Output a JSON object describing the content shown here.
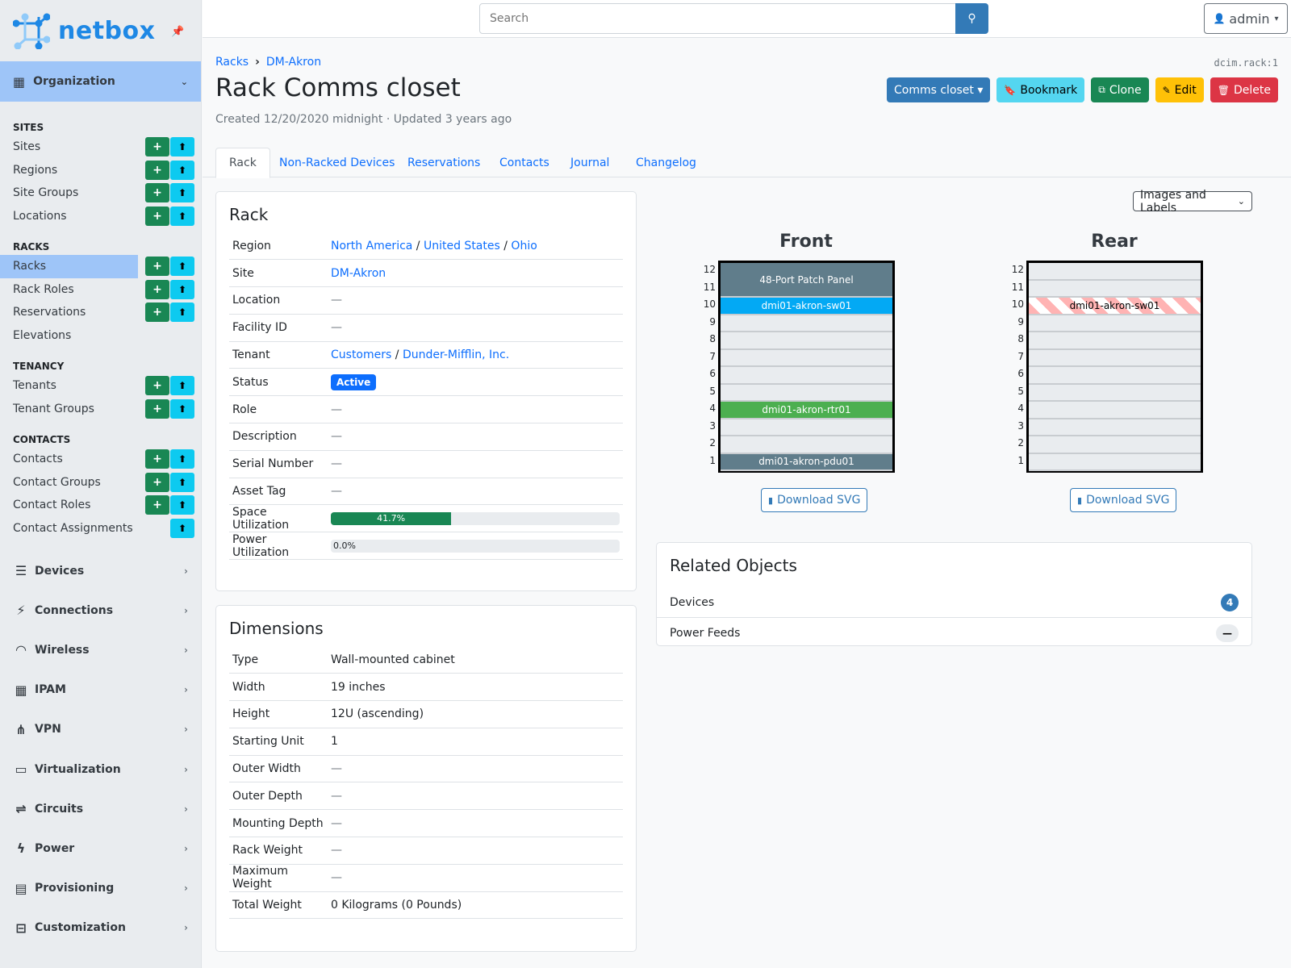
{
  "brand": "netbox",
  "colors": {
    "accent": "#0d6efd",
    "sidebar_active": "#9ec5f8",
    "front_patch": "#607d8b",
    "front_switch": "#03a9f4",
    "front_router": "#4caf50",
    "front_pdu": "#607d8b",
    "rear_hatch": "#ffb3b3"
  },
  "sidebar": {
    "top_group": {
      "label": "Organization",
      "icon": "building-icon"
    },
    "sections": [
      {
        "title": "SITES",
        "items": [
          {
            "label": "Sites",
            "add": true,
            "import": true
          },
          {
            "label": "Regions",
            "add": true,
            "import": true
          },
          {
            "label": "Site Groups",
            "add": true,
            "import": true
          },
          {
            "label": "Locations",
            "add": true,
            "import": true
          }
        ]
      },
      {
        "title": "RACKS",
        "items": [
          {
            "label": "Racks",
            "add": true,
            "import": true,
            "active": true
          },
          {
            "label": "Rack Roles",
            "add": true,
            "import": true
          },
          {
            "label": "Reservations",
            "add": true,
            "import": true
          },
          {
            "label": "Elevations",
            "add": false,
            "import": false
          }
        ]
      },
      {
        "title": "TENANCY",
        "items": [
          {
            "label": "Tenants",
            "add": true,
            "import": true
          },
          {
            "label": "Tenant Groups",
            "add": true,
            "import": true
          }
        ]
      },
      {
        "title": "CONTACTS",
        "items": [
          {
            "label": "Contacts",
            "add": true,
            "import": true
          },
          {
            "label": "Contact Groups",
            "add": true,
            "import": true
          },
          {
            "label": "Contact Roles",
            "add": true,
            "import": true
          },
          {
            "label": "Contact Assignments",
            "add": false,
            "import": true
          }
        ]
      }
    ],
    "groups": [
      {
        "label": "Devices",
        "icon": "server-icon",
        "glyph": "☰"
      },
      {
        "label": "Connections",
        "icon": "plug-icon",
        "glyph": "⚡"
      },
      {
        "label": "Wireless",
        "icon": "wifi-icon",
        "glyph": "◠"
      },
      {
        "label": "IPAM",
        "icon": "ip-icon",
        "glyph": "▦"
      },
      {
        "label": "VPN",
        "icon": "network-icon",
        "glyph": "⋔"
      },
      {
        "label": "Virtualization",
        "icon": "monitor-icon",
        "glyph": "▭"
      },
      {
        "label": "Circuits",
        "icon": "circuit-icon",
        "glyph": "⇌"
      },
      {
        "label": "Power",
        "icon": "bolt-icon",
        "glyph": "ϟ"
      },
      {
        "label": "Provisioning",
        "icon": "file-icon",
        "glyph": "▤"
      },
      {
        "label": "Customization",
        "icon": "toolbox-icon",
        "glyph": "⊟"
      }
    ]
  },
  "header": {
    "search_placeholder": "Search",
    "user": "admin"
  },
  "breadcrumb": [
    "Racks",
    "DM-Akron"
  ],
  "object_id": "dcim.rack:1",
  "title": "Rack Comms closet",
  "meta": "Created 12/20/2020 midnight · Updated 3 years ago",
  "actions": [
    {
      "label": "Comms closet ▾",
      "icon": "",
      "bg": "#337ab7",
      "fg": "#fff",
      "name": "rack-nav-dropdown"
    },
    {
      "label": "Bookmark",
      "icon": "bookmark-icon",
      "glyph": "🔖",
      "bg": "#54d6f0",
      "fg": "#000",
      "name": "bookmark-button"
    },
    {
      "label": "Clone",
      "icon": "clone-icon",
      "glyph": "⧉",
      "bg": "#198754",
      "fg": "#fff",
      "name": "clone-button"
    },
    {
      "label": "Edit",
      "icon": "pencil-icon",
      "glyph": "✎",
      "bg": "#ffc107",
      "fg": "#000",
      "name": "edit-button"
    },
    {
      "label": "Delete",
      "icon": "trash-icon",
      "glyph": "🗑",
      "bg": "#dc3545",
      "fg": "#fff",
      "name": "delete-button"
    }
  ],
  "tabs": [
    {
      "label": "Rack",
      "active": true
    },
    {
      "label": "Non-Racked Devices"
    },
    {
      "label": "Reservations"
    },
    {
      "label": "Contacts"
    },
    {
      "label": "Journal"
    },
    {
      "label": "Changelog"
    }
  ],
  "rack_card": {
    "title": "Rack",
    "rows": [
      {
        "key": "Region",
        "links": [
          "North America",
          "United States",
          "Ohio"
        ]
      },
      {
        "key": "Site",
        "links": [
          "DM-Akron"
        ]
      },
      {
        "key": "Location",
        "value": "—"
      },
      {
        "key": "Facility ID",
        "value": "—"
      },
      {
        "key": "Tenant",
        "links": [
          "Customers",
          "Dunder-Mifflin, Inc."
        ]
      },
      {
        "key": "Status",
        "badge": "Active"
      },
      {
        "key": "Role",
        "value": "—"
      },
      {
        "key": "Description",
        "value": "—"
      },
      {
        "key": "Serial Number",
        "value": "—"
      },
      {
        "key": "Asset Tag",
        "value": "—"
      },
      {
        "key": "Space Utilization",
        "progress": 41.7,
        "progress_label": "41.7%"
      },
      {
        "key": "Power Utilization",
        "progress": 0,
        "progress_label": "0.0%"
      }
    ]
  },
  "dimensions_card": {
    "title": "Dimensions",
    "rows": [
      {
        "key": "Type",
        "value": "Wall-mounted cabinet"
      },
      {
        "key": "Width",
        "value": "19 inches"
      },
      {
        "key": "Height",
        "value": "12U (ascending)"
      },
      {
        "key": "Starting Unit",
        "value": "1"
      },
      {
        "key": "Outer Width",
        "value": "—"
      },
      {
        "key": "Outer Depth",
        "value": "—"
      },
      {
        "key": "Mounting Depth",
        "value": "—"
      },
      {
        "key": "Rack Weight",
        "value": "—"
      },
      {
        "key": "Maximum Weight",
        "value": "—"
      },
      {
        "key": "Total Weight",
        "value": "0 Kilograms (0 Pounds)"
      }
    ]
  },
  "elevation": {
    "view_select": "Images and Labels",
    "units": 12,
    "download_label": "Download SVG",
    "front": {
      "title": "Front",
      "devices": [
        {
          "name": "48-Port Patch Panel",
          "u": 11,
          "height": 2,
          "color": "#607d8b"
        },
        {
          "name": "dmi01-akron-sw01",
          "u": 10,
          "height": 1,
          "color": "#03a9f4"
        },
        {
          "name": "dmi01-akron-rtr01",
          "u": 4,
          "height": 1,
          "color": "#4caf50"
        },
        {
          "name": "dmi01-akron-pdu01",
          "u": 1,
          "height": 1,
          "color": "#607d8b"
        }
      ]
    },
    "rear": {
      "title": "Rear",
      "devices": [
        {
          "name": "dmi01-akron-sw01",
          "u": 10,
          "height": 1,
          "color": "#ffb3b3",
          "hatched": true
        }
      ]
    }
  },
  "related": {
    "title": "Related Objects",
    "items": [
      {
        "label": "Devices",
        "count": "4"
      },
      {
        "label": "Power Feeds",
        "count": "—"
      }
    ]
  }
}
